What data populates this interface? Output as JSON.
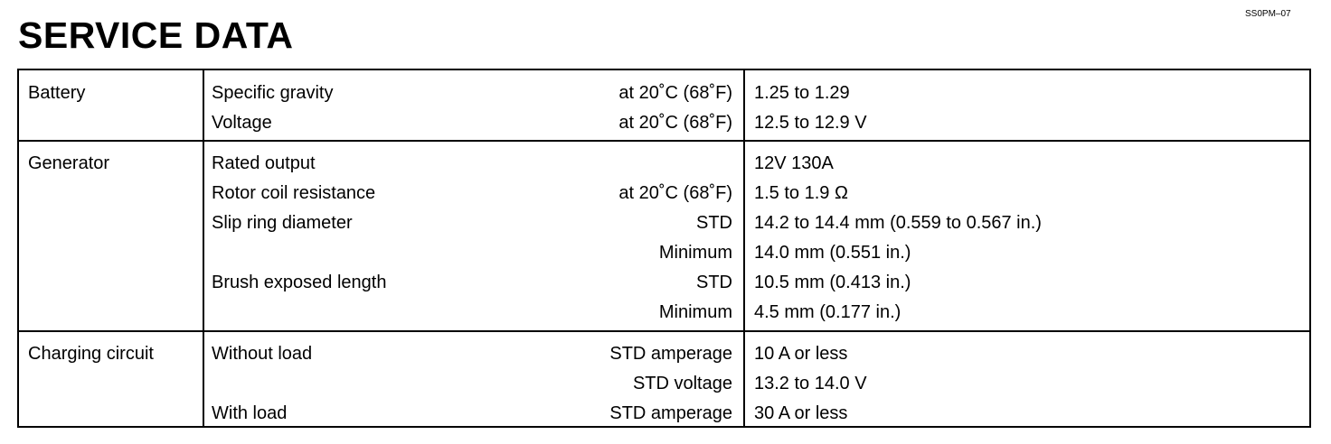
{
  "header": {
    "title": "SERVICE DATA",
    "doc_code": "SS0PM–07"
  },
  "table": {
    "sections": [
      {
        "category": "Battery",
        "rows": [
          {
            "item": "Specific gravity",
            "condition": "at 20˚C (68˚F)",
            "value": "1.25 to 1.29"
          },
          {
            "item": "Voltage",
            "condition": "at 20˚C (68˚F)",
            "value": "12.5 to 12.9 V"
          }
        ]
      },
      {
        "category": "Generator",
        "rows": [
          {
            "item": "Rated output",
            "condition": "",
            "value": "12V  130A"
          },
          {
            "item": "Rotor coil resistance",
            "condition": "at 20˚C (68˚F)",
            "value": "1.5 to 1.9 Ω"
          },
          {
            "item": "Slip ring diameter",
            "condition": "STD",
            "value": "14.2 to 14.4 mm (0.559 to 0.567 in.)"
          },
          {
            "item": "",
            "condition": "Minimum",
            "value": "14.0 mm (0.551 in.)"
          },
          {
            "item": "Brush exposed length",
            "condition": "STD",
            "value": "10.5 mm (0.413 in.)"
          },
          {
            "item": "",
            "condition": "Minimum",
            "value": "4.5 mm (0.177 in.)"
          }
        ]
      },
      {
        "category": "Charging circuit",
        "rows": [
          {
            "item": "Without load",
            "condition": "STD amperage",
            "value": "10 A or less"
          },
          {
            "item": "",
            "condition": "STD voltage",
            "value": "13.2 to 14.0 V"
          },
          {
            "item": "With load",
            "condition": "STD amperage",
            "value": "30 A or less"
          }
        ]
      }
    ]
  }
}
